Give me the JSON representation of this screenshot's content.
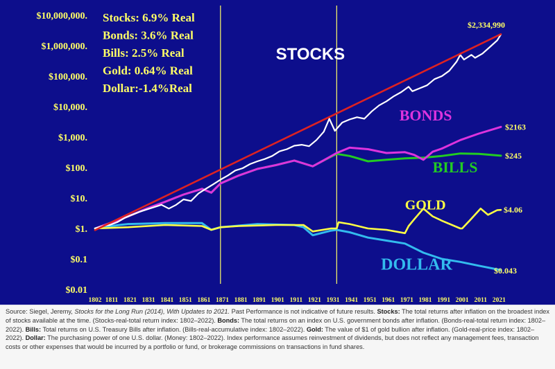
{
  "chart_data": {
    "type": "line",
    "y_scale": "log",
    "ylim": [
      0.01,
      10000000
    ],
    "xlim": [
      1802,
      2022
    ],
    "y_tick_values": [
      10000000,
      1000000,
      100000,
      10000,
      1000,
      100,
      10,
      1,
      0.1,
      0.01
    ],
    "y_tick_labels": [
      "$10,000,000.",
      "$1,000,000.",
      "$100,000.",
      "$10,000.",
      "$1,000.",
      "$100.",
      "$10.",
      "$1.",
      "$0.1",
      "$0.01"
    ],
    "x_ticks": [
      "1802",
      "1811",
      "1821",
      "1831",
      "1841",
      "1851",
      "1861",
      "1871",
      "1881",
      "1891",
      "1901",
      "1911",
      "1921",
      "1931",
      "1941",
      "1951",
      "1961",
      "1971",
      "1981",
      "1991",
      "2001",
      "2011",
      "2021"
    ],
    "vertical_lines": [
      1870,
      1933
    ],
    "legend_lines": [
      "Stocks: 6.9% Real",
      "Bonds: 3.6% Real",
      "Bills:    2.5% Real",
      "Gold:   0.64% Real",
      "Dollar:-1.4%Real"
    ],
    "colors": {
      "background": "#0d0e8c",
      "text": "#ffff66",
      "stocks": "#ffffff",
      "trend": "#dd2222",
      "bonds": "#dd33dd",
      "bills": "#22cc22",
      "gold": "#ffff44",
      "dollar": "#33bbee"
    },
    "series": [
      {
        "name": "STOCKS",
        "key": "stocks",
        "end_label": "$2,334,990",
        "x": [
          1802,
          1806,
          1810,
          1814,
          1818,
          1822,
          1826,
          1830,
          1834,
          1838,
          1842,
          1846,
          1850,
          1854,
          1858,
          1862,
          1866,
          1870,
          1874,
          1878,
          1882,
          1886,
          1890,
          1894,
          1898,
          1902,
          1906,
          1910,
          1914,
          1918,
          1922,
          1926,
          1929,
          1932,
          1936,
          1940,
          1944,
          1948,
          1952,
          1956,
          1960,
          1964,
          1968,
          1972,
          1974,
          1978,
          1982,
          1986,
          1990,
          1994,
          1998,
          2000,
          2002,
          2006,
          2008,
          2012,
          2016,
          2020,
          2022
        ],
        "y": [
          1,
          1.2,
          1.3,
          1.6,
          2.2,
          2.8,
          3.5,
          4.2,
          5,
          6,
          4.5,
          6,
          9,
          8,
          14,
          20,
          28,
          40,
          55,
          80,
          95,
          130,
          160,
          190,
          240,
          340,
          400,
          520,
          560,
          500,
          800,
          1500,
          4000,
          1600,
          3000,
          3800,
          4500,
          4000,
          7000,
          11000,
          15000,
          22000,
          30000,
          45000,
          32000,
          40000,
          50000,
          80000,
          100000,
          150000,
          300000,
          500000,
          350000,
          500000,
          400000,
          550000,
          900000,
          1500000,
          2334990
        ]
      },
      {
        "name": "trend",
        "key": "trend",
        "x": [
          1802,
          2022
        ],
        "y": [
          0.88,
          2400000
        ]
      },
      {
        "name": "BONDS",
        "key": "bonds",
        "end_label": "$2163",
        "x": [
          1802,
          1810,
          1820,
          1830,
          1840,
          1850,
          1860,
          1865,
          1870,
          1880,
          1890,
          1900,
          1910,
          1920,
          1925,
          1933,
          1940,
          1950,
          1960,
          1970,
          1975,
          1980,
          1985,
          1990,
          2000,
          2010,
          2022
        ],
        "y": [
          1,
          1.5,
          2.5,
          4.5,
          7.5,
          13,
          20,
          15,
          30,
          55,
          90,
          120,
          170,
          110,
          160,
          300,
          450,
          400,
          300,
          320,
          260,
          180,
          330,
          420,
          800,
          1300,
          2163
        ]
      },
      {
        "name": "BILLS",
        "key": "bills",
        "end_label": "$245",
        "x": [
          1802,
          1810,
          1820,
          1830,
          1840,
          1850,
          1860,
          1865,
          1870,
          1880,
          1890,
          1900,
          1910,
          1920,
          1925,
          1933,
          1940,
          1950,
          1960,
          1970,
          1980,
          1990,
          2000,
          2010,
          2022
        ],
        "y": [
          1,
          1.5,
          2.5,
          4.5,
          7.5,
          13,
          20,
          15,
          30,
          55,
          90,
          120,
          170,
          110,
          160,
          280,
          240,
          160,
          180,
          200,
          210,
          240,
          290,
          280,
          245
        ]
      },
      {
        "name": "GOLD",
        "key": "gold",
        "end_label": "$4.06",
        "x": [
          1802,
          1820,
          1840,
          1860,
          1865,
          1870,
          1880,
          1900,
          1915,
          1920,
          1930,
          1933,
          1934,
          1940,
          1950,
          1960,
          1970,
          1972,
          1975,
          1980,
          1985,
          1990,
          2000,
          2001,
          2005,
          2011,
          2015,
          2020,
          2022
        ],
        "y": [
          1,
          1.1,
          1.3,
          1.2,
          0.9,
          1.1,
          1.2,
          1.3,
          1.3,
          0.8,
          1,
          1,
          1.6,
          1.4,
          1,
          0.9,
          0.7,
          1.2,
          2,
          4.5,
          2.5,
          1.8,
          1,
          1,
          1.8,
          4.5,
          2.8,
          4,
          4.06
        ]
      },
      {
        "name": "DOLLAR",
        "key": "dollar",
        "end_label": "$0.043",
        "x": [
          1802,
          1815,
          1820,
          1840,
          1860,
          1865,
          1870,
          1890,
          1910,
          1915,
          1920,
          1930,
          1933,
          1940,
          1950,
          1960,
          1970,
          1980,
          1990,
          2000,
          2010,
          2022
        ],
        "y": [
          1,
          1.3,
          1.4,
          1.5,
          1.5,
          0.9,
          1.1,
          1.4,
          1.3,
          1.1,
          0.6,
          0.85,
          0.9,
          0.75,
          0.5,
          0.4,
          0.32,
          0.16,
          0.1,
          0.08,
          0.06,
          0.043
        ]
      }
    ],
    "series_labels": [
      {
        "key": "stocks",
        "text": "STOCKS",
        "x": 1900,
        "y": 350000,
        "serif": false,
        "size": 24
      },
      {
        "key": "bonds",
        "text": "BONDS",
        "x": 1967,
        "y": 3500,
        "serif": true,
        "size": 22
      },
      {
        "key": "bills",
        "text": "BILLS",
        "x": 1985,
        "y": 70,
        "serif": true,
        "size": 22
      },
      {
        "key": "gold",
        "text": "GOLD",
        "x": 1970,
        "y": 4.2,
        "serif": true,
        "size": 20
      },
      {
        "key": "dollar",
        "text": "DOLLAR",
        "x": 1957,
        "y": 0.045,
        "serif": true,
        "size": 24
      }
    ]
  },
  "footnote": {
    "source_prefix": "Source: Siegel, Jeremy, ",
    "book_title": "Stocks for the Long Run (2014), With Updates to 2021.",
    "past_performance": " Past Performance is not indicative of future results. ",
    "stocks_term": "Stocks:",
    "stocks_text": " The total returns after inflation on the broadest index of stocks available at the time. (Stocks-real-total return index: 1802–2022). ",
    "bonds_term": "Bonds:",
    "bonds_text": " The total returns on an index on U.S. government bonds after inflation. (Bonds-real-total return index: 1802–2022). ",
    "bills_term": "Bills:",
    "bills_text": " Total returns on U.S. Treasury Bills after inflation. (Bills-real-accumulative index: 1802–2022). ",
    "gold_term": "Gold:",
    "gold_text": " The value of $1 of gold bullion after inflation. (Gold-real-price index: 1802–2022). ",
    "dollar_term": "Dollar:",
    "dollar_text": " The purchasing power of one U.S. dollar. (Money: 1802–2022). Index performance assumes reinvestment of dividends, but does not reflect any management fees, transaction costs or other expenses that would be incurred by a portfolio or fund, or brokerage commissions on transactions in fund shares."
  }
}
